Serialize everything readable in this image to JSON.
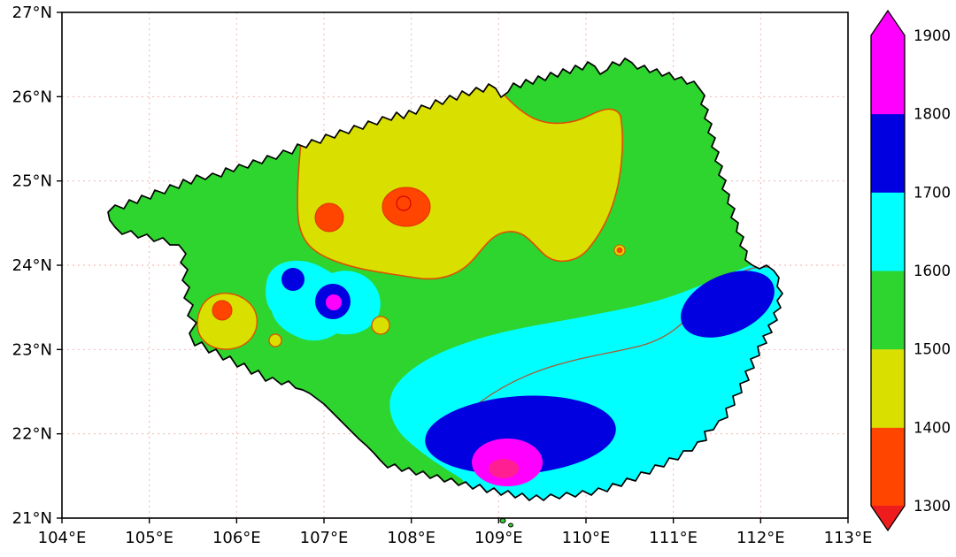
{
  "chart_data": {
    "type": "heatmap",
    "subtype": "filled-contour-map",
    "region": "Guangxi, China (province-shaped contour map)",
    "title": "",
    "x_axis": {
      "ticks": [
        "104°E",
        "105°E",
        "106°E",
        "107°E",
        "108°E",
        "109°E",
        "110°E",
        "111°E",
        "112°E",
        "113°E"
      ],
      "range_deg_east": [
        104,
        113
      ],
      "grid": true
    },
    "y_axis": {
      "ticks": [
        "21°N",
        "22°N",
        "23°N",
        "24°N",
        "25°N",
        "26°N",
        "27°N"
      ],
      "range_deg_north": [
        21,
        27
      ],
      "grid": true
    },
    "colorbar": {
      "labels": [
        "1300",
        "1400",
        "1500",
        "1600",
        "1700",
        "1800",
        "1900"
      ],
      "values": [
        1300,
        1400,
        1500,
        1600,
        1700,
        1800,
        1900
      ],
      "extend": "both",
      "segment_colors_low_to_high": [
        "#ff4500",
        "#d9e000",
        "#2ed52e",
        "#00ffff",
        "#0000e0",
        "#ff00ff"
      ],
      "under_color": "#ee1c1c",
      "over_color": "#ff00ff",
      "position": "right"
    },
    "colors": {
      "green": "#2ed52e",
      "yellow": "#d9e000",
      "orange": "#ff4500",
      "cyan": "#00ffff",
      "blue": "#0000e0",
      "magenta": "#ff00ff",
      "deeppink": "#ff1f93",
      "grid": "#f4a9a9",
      "contour_orange": "#e04e00",
      "contour_brown": "#a85a32",
      "contour_red": "#d40000",
      "blob_edge": "#e03000",
      "boundary": "#000000"
    },
    "features": [
      {
        "band": "1500-1600",
        "desc": "background level over most of the region"
      },
      {
        "band": "1400-1500",
        "desc": "broad low band across north-central area",
        "center_lon_lat": [
          108.2,
          25.1
        ]
      },
      {
        "band": "1300-1400",
        "desc": "low spot",
        "center_lon_lat": [
          107.1,
          24.5
        ]
      },
      {
        "band": "1300-1400",
        "desc": "low spot with <1300 core ring",
        "center_lon_lat": [
          108.0,
          24.6
        ]
      },
      {
        "band": "1300-1400",
        "desc": "small low spot near western border",
        "center_lon_lat": [
          105.9,
          23.4
        ]
      },
      {
        "band": "1400-1500",
        "desc": "small pocket",
        "center_lon_lat": [
          107.7,
          23.3
        ]
      },
      {
        "band": "1400-1500",
        "desc": "tiny pocket",
        "center_lon_lat": [
          106.5,
          23.1
        ]
      },
      {
        "band": "1600-1700",
        "desc": "pocket enclosing twin high cells",
        "center_lon_lat": [
          106.9,
          23.7
        ]
      },
      {
        "band": "1700-1800",
        "desc": "high cell",
        "center_lon_lat": [
          106.7,
          23.8
        ]
      },
      {
        "band": "1800-1900",
        "desc": "high core",
        "center_lon_lat": [
          107.1,
          23.5
        ]
      },
      {
        "band": "1600-1700",
        "desc": "broad band across southeastern area",
        "center_lon_lat": [
          110.3,
          22.8
        ]
      },
      {
        "band": "1700-1800",
        "desc": "high cell at eastern border",
        "center_lon_lat": [
          111.5,
          23.5
        ]
      },
      {
        "band": "1700-1800",
        "desc": "high cell on south coast",
        "center_lon_lat": [
          109.3,
          22.0
        ]
      },
      {
        "band": "1800-1900",
        "desc": "maximum core on south coast (>1900 center)",
        "center_lon_lat": [
          109.1,
          21.7
        ]
      },
      {
        "band": "1300-1400",
        "desc": "tiny low dot",
        "center_lon_lat": [
          110.4,
          24.2
        ]
      }
    ]
  }
}
